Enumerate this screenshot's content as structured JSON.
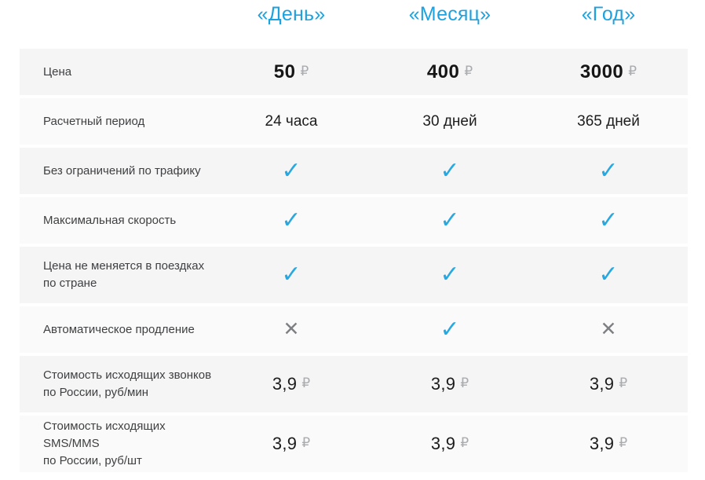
{
  "colors": {
    "accent": "#1ea2df",
    "check": "#29a8e0",
    "cross": "#7d7f82",
    "row_shade_a": "#f5f5f6",
    "row_shade_b": "#fafafa"
  },
  "icon_glyphs": {
    "check": "✓",
    "cross": "✕"
  },
  "columns": [
    {
      "label": "«День»"
    },
    {
      "label": "«Месяц»"
    },
    {
      "label": "«Год»"
    }
  ],
  "rows": [
    {
      "label": "Цена",
      "type": "price",
      "values": [
        {
          "amount": "50",
          "currency": "₽"
        },
        {
          "amount": "400",
          "currency": "₽"
        },
        {
          "amount": "3000",
          "currency": "₽"
        }
      ]
    },
    {
      "label": "Расчетный период",
      "type": "text",
      "values": [
        "24 часа",
        "30 дней",
        "365 дней"
      ]
    },
    {
      "label": "Без ограничений по трафику",
      "type": "icon",
      "values": [
        "check",
        "check",
        "check"
      ]
    },
    {
      "label": "Максимальная скорость",
      "type": "icon",
      "values": [
        "check",
        "check",
        "check"
      ]
    },
    {
      "label": "Цена не меняется в поездках\nпо стране",
      "type": "icon",
      "values": [
        "check",
        "check",
        "check"
      ]
    },
    {
      "label": "Автоматическое продление",
      "type": "icon",
      "values": [
        "cross",
        "check",
        "cross"
      ]
    },
    {
      "label": "Стоимость исходящих звонков\nпо России, руб/мин",
      "type": "price_small",
      "values": [
        {
          "amount": "3,9",
          "currency": "₽"
        },
        {
          "amount": "3,9",
          "currency": "₽"
        },
        {
          "amount": "3,9",
          "currency": "₽"
        }
      ]
    },
    {
      "label": "Стоимость исходящих SMS/MMS\nпо России, руб/шт",
      "type": "price_small",
      "values": [
        {
          "amount": "3,9",
          "currency": "₽"
        },
        {
          "amount": "3,9",
          "currency": "₽"
        },
        {
          "amount": "3,9",
          "currency": "₽"
        }
      ]
    }
  ]
}
